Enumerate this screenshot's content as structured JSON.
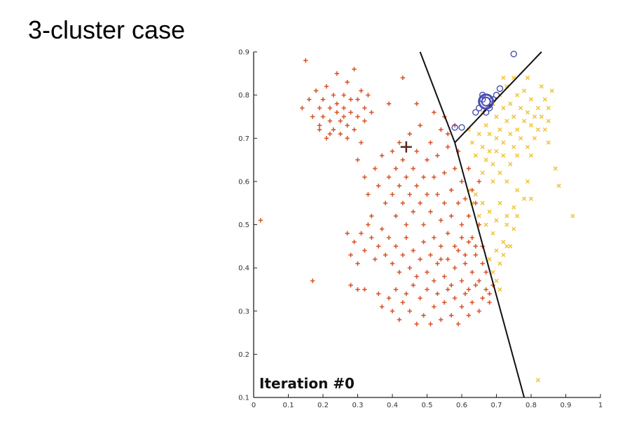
{
  "slide": {
    "title": "3-cluster case"
  },
  "chart_data": {
    "type": "scatter",
    "title": "",
    "xlabel": "",
    "ylabel": "",
    "xlim": [
      0,
      1
    ],
    "ylim": [
      0.1,
      0.9
    ],
    "x_ticks": [
      "0",
      "0.1",
      "0.2",
      "0.3",
      "0.4",
      "0.5",
      "0.6",
      "0.7",
      "0.8",
      "0.9",
      "1"
    ],
    "y_ticks": [
      "0.1",
      "0.2",
      "0.3",
      "0.4",
      "0.5",
      "0.6",
      "0.7",
      "0.8",
      "0.9"
    ],
    "grid": false,
    "annotation": "Iteration #0",
    "colors": {
      "cluster1": "#d9582b",
      "cluster2": "#f0c43a",
      "cluster3": "#4a4fb5",
      "boundary": "#111111"
    },
    "boundaries": [
      {
        "points": [
          [
            0.48,
            0.9
          ],
          [
            0.58,
            0.69
          ],
          [
            0.78,
            0.1
          ]
        ]
      },
      {
        "points": [
          [
            0.58,
            0.69
          ],
          [
            0.83,
            0.9
          ]
        ]
      }
    ],
    "centroids": [
      {
        "cluster": 1,
        "x": 0.44,
        "y": 0.68
      },
      {
        "cluster": 3,
        "x": 0.67,
        "y": 0.785
      }
    ],
    "series": [
      {
        "marker": "plus",
        "color": "#d9582b",
        "points": [
          [
            0.15,
            0.88
          ],
          [
            0.02,
            0.51
          ],
          [
            0.17,
            0.37
          ],
          [
            0.14,
            0.77
          ],
          [
            0.16,
            0.79
          ],
          [
            0.17,
            0.75
          ],
          [
            0.18,
            0.81
          ],
          [
            0.19,
            0.77
          ],
          [
            0.19,
            0.73
          ],
          [
            0.2,
            0.79
          ],
          [
            0.2,
            0.75
          ],
          [
            0.21,
            0.82
          ],
          [
            0.21,
            0.7
          ],
          [
            0.22,
            0.77
          ],
          [
            0.22,
            0.74
          ],
          [
            0.23,
            0.8
          ],
          [
            0.23,
            0.72
          ],
          [
            0.24,
            0.85
          ],
          [
            0.24,
            0.78
          ],
          [
            0.24,
            0.76
          ],
          [
            0.25,
            0.74
          ],
          [
            0.25,
            0.71
          ],
          [
            0.26,
            0.8
          ],
          [
            0.26,
            0.77
          ],
          [
            0.26,
            0.75
          ],
          [
            0.27,
            0.83
          ],
          [
            0.27,
            0.73
          ],
          [
            0.28,
            0.79
          ],
          [
            0.28,
            0.76
          ],
          [
            0.29,
            0.86
          ],
          [
            0.29,
            0.72
          ],
          [
            0.3,
            0.79
          ],
          [
            0.3,
            0.75
          ],
          [
            0.31,
            0.81
          ],
          [
            0.31,
            0.69
          ],
          [
            0.32,
            0.77
          ],
          [
            0.32,
            0.74
          ],
          [
            0.33,
            0.8
          ],
          [
            0.34,
            0.76
          ],
          [
            0.19,
            0.72
          ],
          [
            0.22,
            0.71
          ],
          [
            0.27,
            0.7
          ],
          [
            0.43,
            0.84
          ],
          [
            0.39,
            0.78
          ],
          [
            0.47,
            0.78
          ],
          [
            0.52,
            0.76
          ],
          [
            0.3,
            0.65
          ],
          [
            0.32,
            0.61
          ],
          [
            0.33,
            0.57
          ],
          [
            0.34,
            0.52
          ],
          [
            0.35,
            0.63
          ],
          [
            0.36,
            0.59
          ],
          [
            0.37,
            0.66
          ],
          [
            0.38,
            0.55
          ],
          [
            0.39,
            0.61
          ],
          [
            0.4,
            0.67
          ],
          [
            0.4,
            0.57
          ],
          [
            0.41,
            0.63
          ],
          [
            0.41,
            0.52
          ],
          [
            0.42,
            0.69
          ],
          [
            0.42,
            0.59
          ],
          [
            0.43,
            0.55
          ],
          [
            0.43,
            0.65
          ],
          [
            0.44,
            0.61
          ],
          [
            0.44,
            0.5
          ],
          [
            0.45,
            0.57
          ],
          [
            0.45,
            0.71
          ],
          [
            0.46,
            0.63
          ],
          [
            0.46,
            0.53
          ],
          [
            0.47,
            0.67
          ],
          [
            0.47,
            0.59
          ],
          [
            0.48,
            0.55
          ],
          [
            0.48,
            0.73
          ],
          [
            0.49,
            0.61
          ],
          [
            0.49,
            0.5
          ],
          [
            0.5,
            0.65
          ],
          [
            0.5,
            0.57
          ],
          [
            0.51,
            0.69
          ],
          [
            0.51,
            0.53
          ],
          [
            0.52,
            0.61
          ],
          [
            0.52,
            0.47
          ],
          [
            0.53,
            0.66
          ],
          [
            0.53,
            0.57
          ],
          [
            0.54,
            0.51
          ],
          [
            0.54,
            0.72
          ],
          [
            0.55,
            0.62
          ],
          [
            0.55,
            0.55
          ],
          [
            0.56,
            0.48
          ],
          [
            0.56,
            0.68
          ],
          [
            0.57,
            0.58
          ],
          [
            0.57,
            0.52
          ],
          [
            0.58,
            0.63
          ],
          [
            0.58,
            0.45
          ],
          [
            0.59,
            0.67
          ],
          [
            0.59,
            0.55
          ],
          [
            0.6,
            0.5
          ],
          [
            0.6,
            0.6
          ],
          [
            0.61,
            0.43
          ],
          [
            0.61,
            0.56
          ],
          [
            0.62,
            0.52
          ],
          [
            0.62,
            0.63
          ],
          [
            0.63,
            0.47
          ],
          [
            0.63,
            0.58
          ],
          [
            0.64,
            0.45
          ],
          [
            0.64,
            0.55
          ],
          [
            0.65,
            0.5
          ],
          [
            0.65,
            0.6
          ],
          [
            0.55,
            0.75
          ],
          [
            0.56,
            0.71
          ],
          [
            0.58,
            0.73
          ],
          [
            0.27,
            0.48
          ],
          [
            0.28,
            0.43
          ],
          [
            0.29,
            0.46
          ],
          [
            0.3,
            0.41
          ],
          [
            0.31,
            0.48
          ],
          [
            0.32,
            0.44
          ],
          [
            0.33,
            0.5
          ],
          [
            0.34,
            0.47
          ],
          [
            0.35,
            0.42
          ],
          [
            0.36,
            0.45
          ],
          [
            0.37,
            0.49
          ],
          [
            0.38,
            0.43
          ],
          [
            0.39,
            0.47
          ],
          [
            0.4,
            0.41
          ],
          [
            0.41,
            0.45
          ],
          [
            0.42,
            0.39
          ],
          [
            0.43,
            0.43
          ],
          [
            0.44,
            0.47
          ],
          [
            0.45,
            0.4
          ],
          [
            0.46,
            0.44
          ],
          [
            0.47,
            0.38
          ],
          [
            0.48,
            0.42
          ],
          [
            0.49,
            0.46
          ],
          [
            0.5,
            0.39
          ],
          [
            0.51,
            0.43
          ],
          [
            0.52,
            0.37
          ],
          [
            0.53,
            0.41
          ],
          [
            0.54,
            0.45
          ],
          [
            0.55,
            0.38
          ],
          [
            0.56,
            0.42
          ],
          [
            0.57,
            0.36
          ],
          [
            0.58,
            0.4
          ],
          [
            0.59,
            0.44
          ],
          [
            0.6,
            0.37
          ],
          [
            0.61,
            0.41
          ],
          [
            0.62,
            0.35
          ],
          [
            0.63,
            0.39
          ],
          [
            0.64,
            0.43
          ],
          [
            0.65,
            0.37
          ],
          [
            0.66,
            0.41
          ],
          [
            0.66,
            0.45
          ],
          [
            0.67,
            0.39
          ],
          [
            0.68,
            0.34
          ],
          [
            0.69,
            0.36
          ],
          [
            0.28,
            0.36
          ],
          [
            0.3,
            0.35
          ],
          [
            0.32,
            0.35
          ],
          [
            0.36,
            0.34
          ],
          [
            0.37,
            0.31
          ],
          [
            0.39,
            0.33
          ],
          [
            0.4,
            0.3
          ],
          [
            0.41,
            0.35
          ],
          [
            0.42,
            0.28
          ],
          [
            0.43,
            0.32
          ],
          [
            0.44,
            0.34
          ],
          [
            0.45,
            0.3
          ],
          [
            0.46,
            0.36
          ],
          [
            0.47,
            0.27
          ],
          [
            0.48,
            0.33
          ],
          [
            0.49,
            0.29
          ],
          [
            0.5,
            0.35
          ],
          [
            0.51,
            0.27
          ],
          [
            0.52,
            0.31
          ],
          [
            0.53,
            0.34
          ],
          [
            0.54,
            0.28
          ],
          [
            0.55,
            0.32
          ],
          [
            0.56,
            0.35
          ],
          [
            0.57,
            0.29
          ],
          [
            0.58,
            0.33
          ],
          [
            0.59,
            0.27
          ],
          [
            0.6,
            0.31
          ],
          [
            0.61,
            0.34
          ],
          [
            0.62,
            0.29
          ],
          [
            0.63,
            0.32
          ],
          [
            0.64,
            0.36
          ],
          [
            0.66,
            0.33
          ],
          [
            0.67,
            0.35
          ],
          [
            0.68,
            0.32
          ],
          [
            0.65,
            0.3
          ],
          [
            0.54,
            0.42
          ],
          [
            0.6,
            0.47
          ],
          [
            0.62,
            0.46
          ]
        ]
      },
      {
        "marker": "cross",
        "color": "#f0c43a",
        "points": [
          [
            0.66,
            0.76
          ],
          [
            0.67,
            0.73
          ],
          [
            0.68,
            0.71
          ],
          [
            0.69,
            0.78
          ],
          [
            0.7,
            0.75
          ],
          [
            0.71,
            0.72
          ],
          [
            0.71,
            0.8
          ],
          [
            0.72,
            0.77
          ],
          [
            0.72,
            0.69
          ],
          [
            0.73,
            0.74
          ],
          [
            0.73,
            0.82
          ],
          [
            0.74,
            0.71
          ],
          [
            0.74,
            0.78
          ],
          [
            0.75,
            0.75
          ],
          [
            0.75,
            0.68
          ],
          [
            0.76,
            0.8
          ],
          [
            0.76,
            0.72
          ],
          [
            0.77,
            0.77
          ],
          [
            0.77,
            0.7
          ],
          [
            0.78,
            0.74
          ],
          [
            0.78,
            0.81
          ],
          [
            0.79,
            0.76
          ],
          [
            0.79,
            0.68
          ],
          [
            0.8,
            0.73
          ],
          [
            0.8,
            0.79
          ],
          [
            0.81,
            0.75
          ],
          [
            0.81,
            0.7
          ],
          [
            0.82,
            0.77
          ],
          [
            0.82,
            0.72
          ],
          [
            0.83,
            0.75
          ],
          [
            0.84,
            0.79
          ],
          [
            0.84,
            0.72
          ],
          [
            0.85,
            0.77
          ],
          [
            0.85,
            0.74
          ],
          [
            0.7,
            0.7
          ],
          [
            0.72,
            0.84
          ],
          [
            0.75,
            0.84
          ],
          [
            0.79,
            0.84
          ],
          [
            0.83,
            0.82
          ],
          [
            0.86,
            0.81
          ],
          [
            0.76,
            0.66
          ],
          [
            0.8,
            0.66
          ],
          [
            0.85,
            0.69
          ],
          [
            0.62,
            0.72
          ],
          [
            0.63,
            0.69
          ],
          [
            0.64,
            0.66
          ],
          [
            0.65,
            0.71
          ],
          [
            0.66,
            0.68
          ],
          [
            0.67,
            0.65
          ],
          [
            0.68,
            0.67
          ],
          [
            0.69,
            0.64
          ],
          [
            0.7,
            0.67
          ],
          [
            0.71,
            0.62
          ],
          [
            0.72,
            0.66
          ],
          [
            0.73,
            0.6
          ],
          [
            0.74,
            0.64
          ],
          [
            0.69,
            0.6
          ],
          [
            0.66,
            0.62
          ],
          [
            0.62,
            0.58
          ],
          [
            0.63,
            0.55
          ],
          [
            0.64,
            0.57
          ],
          [
            0.65,
            0.52
          ],
          [
            0.66,
            0.55
          ],
          [
            0.67,
            0.5
          ],
          [
            0.68,
            0.53
          ],
          [
            0.69,
            0.48
          ],
          [
            0.7,
            0.51
          ],
          [
            0.71,
            0.55
          ],
          [
            0.72,
            0.46
          ],
          [
            0.73,
            0.5
          ],
          [
            0.74,
            0.45
          ],
          [
            0.75,
            0.49
          ],
          [
            0.76,
            0.52
          ],
          [
            0.7,
            0.44
          ],
          [
            0.71,
            0.41
          ],
          [
            0.72,
            0.43
          ],
          [
            0.73,
            0.45
          ],
          [
            0.68,
            0.42
          ],
          [
            0.69,
            0.39
          ],
          [
            0.7,
            0.37
          ],
          [
            0.71,
            0.35
          ],
          [
            0.73,
            0.52
          ],
          [
            0.75,
            0.54
          ],
          [
            0.76,
            0.58
          ],
          [
            0.78,
            0.56
          ],
          [
            0.79,
            0.6
          ],
          [
            0.8,
            0.56
          ],
          [
            0.87,
            0.63
          ],
          [
            0.88,
            0.59
          ],
          [
            0.92,
            0.52
          ],
          [
            0.82,
            0.14
          ]
        ]
      },
      {
        "marker": "circle",
        "color": "#4a4fb5",
        "points": [
          [
            0.75,
            0.895
          ],
          [
            0.71,
            0.815
          ],
          [
            0.7,
            0.8
          ],
          [
            0.69,
            0.79
          ],
          [
            0.66,
            0.79
          ],
          [
            0.65,
            0.77
          ],
          [
            0.68,
            0.77
          ],
          [
            0.64,
            0.76
          ],
          [
            0.67,
            0.76
          ],
          [
            0.58,
            0.725
          ],
          [
            0.6,
            0.725
          ],
          [
            0.66,
            0.8
          ]
        ]
      }
    ]
  }
}
